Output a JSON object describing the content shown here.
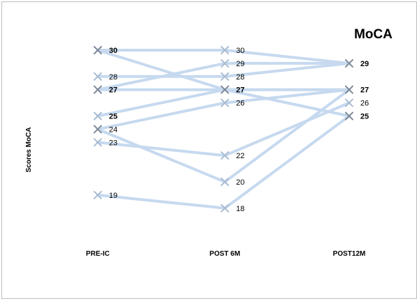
{
  "chart_data": {
    "type": "line",
    "title": "MoCA",
    "ylabel": "Scores MoCA",
    "xlabel": "",
    "categories": [
      "PRE-IC",
      "POST 6M",
      "POST12M"
    ],
    "ylim": [
      18,
      30
    ],
    "grid": false,
    "legend": "none",
    "colors": {
      "line": "#c6d9ef",
      "marker": "#a9bcd2",
      "marker_overlap": "#7f8a99"
    },
    "series": [
      {
        "values": [
          30,
          30,
          29
        ]
      },
      {
        "values": [
          30,
          27,
          25
        ]
      },
      {
        "values": [
          28,
          28,
          29
        ]
      },
      {
        "values": [
          27,
          29,
          29
        ]
      },
      {
        "values": [
          27,
          27,
          27
        ]
      },
      {
        "values": [
          25,
          27,
          27
        ]
      },
      {
        "values": [
          24,
          26,
          27
        ]
      },
      {
        "values": [
          24,
          20,
          27
        ]
      },
      {
        "values": [
          23,
          22,
          26
        ]
      },
      {
        "values": [
          19,
          18,
          25
        ]
      }
    ],
    "point_labels": [
      {
        "x": 0,
        "label": "30",
        "value": 30,
        "bold": true
      },
      {
        "x": 0,
        "label": "28",
        "value": 28,
        "bold": false
      },
      {
        "x": 0,
        "label": "27",
        "value": 27,
        "bold": true
      },
      {
        "x": 0,
        "label": "25",
        "value": 25,
        "bold": true
      },
      {
        "x": 0,
        "label": "24",
        "value": 24,
        "bold": false
      },
      {
        "x": 0,
        "label": "23",
        "value": 23,
        "bold": false
      },
      {
        "x": 0,
        "label": "19",
        "value": 19,
        "bold": false
      },
      {
        "x": 1,
        "label": "30",
        "value": 30,
        "bold": false
      },
      {
        "x": 1,
        "label": "29",
        "value": 29,
        "bold": false
      },
      {
        "x": 1,
        "label": "28",
        "value": 28,
        "bold": false
      },
      {
        "x": 1,
        "label": "27",
        "value": 27,
        "bold": true
      },
      {
        "x": 1,
        "label": "26",
        "value": 26,
        "bold": false
      },
      {
        "x": 1,
        "label": "22",
        "value": 22,
        "bold": false
      },
      {
        "x": 1,
        "label": "20",
        "value": 20,
        "bold": false
      },
      {
        "x": 1,
        "label": "18",
        "value": 18,
        "bold": false
      },
      {
        "x": 2,
        "label": "29",
        "value": 29,
        "bold": true
      },
      {
        "x": 2,
        "label": "27",
        "value": 27,
        "bold": true
      },
      {
        "x": 2,
        "label": "26",
        "value": 26,
        "bold": false
      },
      {
        "x": 2,
        "label": "25",
        "value": 25,
        "bold": true
      }
    ]
  }
}
